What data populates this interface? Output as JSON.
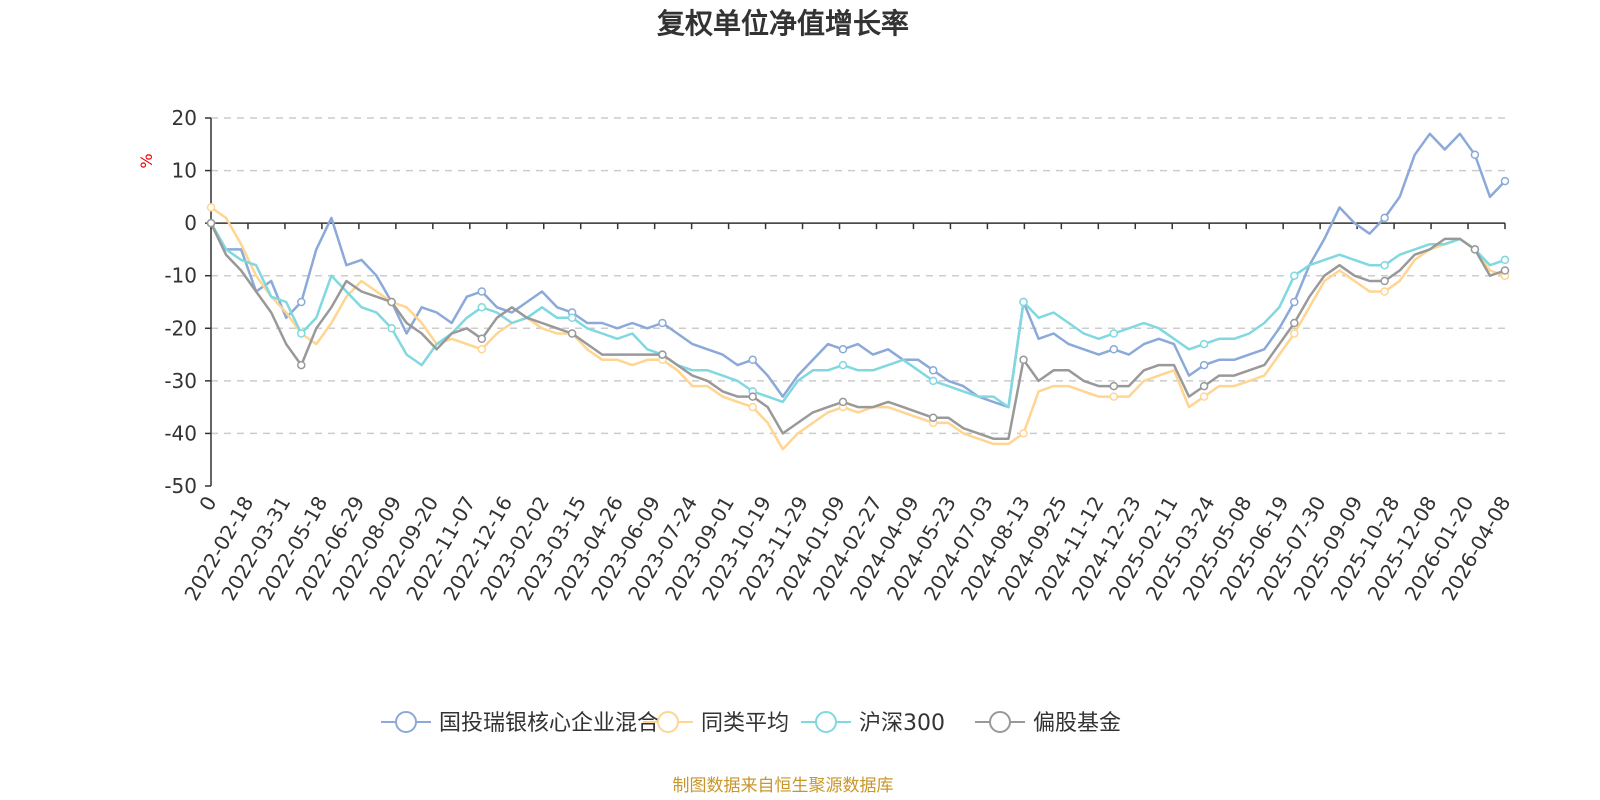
{
  "chart_data": {
    "type": "line",
    "title": "复权单位净值增长率",
    "ylabel": "%",
    "ylim": [
      -50,
      20
    ],
    "yticks": [
      20,
      10,
      0,
      -10,
      -20,
      -30,
      -40,
      -50
    ],
    "x_tick_labels": [
      "0",
      "2022-02-18",
      "2022-03-31",
      "2022-05-18",
      "2022-06-29",
      "2022-08-09",
      "2022-09-20",
      "2022-11-07",
      "2022-12-16",
      "2023-02-02",
      "2023-03-15",
      "2023-04-26",
      "2023-06-09",
      "2023-07-24",
      "2023-09-01",
      "2023-10-19",
      "2023-11-29",
      "2024-01-09",
      "2024-02-27",
      "2024-04-09",
      "2024-05-23",
      "2024-07-03",
      "2024-08-13",
      "2024-09-25",
      "2024-11-12",
      "2024-12-23",
      "2025-02-11",
      "2025-03-24",
      "2025-05-08",
      "2025-06-19",
      "2025-07-30",
      "2025-09-09",
      "2025-10-28",
      "2025-12-08",
      "2026-01-20",
      "2026-04-08"
    ],
    "series": [
      {
        "name": "国投瑞银核心企业混合",
        "color": "#8ba9d9",
        "values": [
          0,
          -5,
          -5,
          -13,
          -11,
          -18,
          -15,
          -5,
          1,
          -8,
          -7,
          -10,
          -15,
          -21,
          -16,
          -17,
          -19,
          -14,
          -13,
          -16,
          -17,
          -15,
          -13,
          -16,
          -17,
          -19,
          -19,
          -20,
          -19,
          -20,
          -19,
          -21,
          -23,
          -24,
          -25,
          -27,
          -26,
          -29,
          -33,
          -29,
          -26,
          -23,
          -24,
          -23,
          -25,
          -24,
          -26,
          -26,
          -28,
          -30,
          -31,
          -33,
          -34,
          -35,
          -15,
          -22,
          -21,
          -23,
          -24,
          -25,
          -24,
          -25,
          -23,
          -22,
          -23,
          -29,
          -27,
          -26,
          -26,
          -25,
          -24,
          -20,
          -15,
          -8,
          -3,
          3,
          0,
          -2,
          1,
          5,
          13,
          17,
          14,
          17,
          13,
          5,
          8
        ]
      },
      {
        "name": "同类平均",
        "color": "#ffd591",
        "values": [
          3,
          1,
          -4,
          -10,
          -14,
          -17,
          -21,
          -23,
          -19,
          -14,
          -11,
          -13,
          -15,
          -16,
          -19,
          -23,
          -22,
          -23,
          -24,
          -21,
          -19,
          -18,
          -20,
          -21,
          -21,
          -24,
          -26,
          -26,
          -27,
          -26,
          -26,
          -28,
          -31,
          -31,
          -33,
          -34,
          -35,
          -38,
          -43,
          -40,
          -38,
          -36,
          -35,
          -36,
          -35,
          -35,
          -36,
          -37,
          -38,
          -38,
          -40,
          -41,
          -42,
          -42,
          -40,
          -32,
          -31,
          -31,
          -32,
          -33,
          -33,
          -33,
          -30,
          -29,
          -28,
          -35,
          -33,
          -31,
          -31,
          -30,
          -29,
          -25,
          -21,
          -16,
          -11,
          -9,
          -11,
          -13,
          -13,
          -11,
          -7,
          -5,
          -4,
          -3,
          -5,
          -9,
          -10
        ]
      },
      {
        "name": "沪深300",
        "color": "#80d8e0",
        "values": [
          0,
          -5,
          -7,
          -8,
          -14,
          -15,
          -21,
          -18,
          -10,
          -13,
          -16,
          -17,
          -20,
          -25,
          -27,
          -23,
          -21,
          -18,
          -16,
          -17,
          -19,
          -18,
          -16,
          -18,
          -18,
          -20,
          -21,
          -22,
          -21,
          -24,
          -25,
          -27,
          -28,
          -28,
          -29,
          -30,
          -32,
          -33,
          -34,
          -30,
          -28,
          -28,
          -27,
          -28,
          -28,
          -27,
          -26,
          -28,
          -30,
          -31,
          -32,
          -33,
          -33,
          -35,
          -15,
          -18,
          -17,
          -19,
          -21,
          -22,
          -21,
          -20,
          -19,
          -20,
          -22,
          -24,
          -23,
          -22,
          -22,
          -21,
          -19,
          -16,
          -10,
          -8,
          -7,
          -6,
          -7,
          -8,
          -8,
          -6,
          -5,
          -4,
          -4,
          -3,
          -5,
          -8,
          -7
        ]
      },
      {
        "name": "偏股基金",
        "color": "#999999",
        "values": [
          0,
          -6,
          -9,
          -13,
          -17,
          -23,
          -27,
          -20,
          -16,
          -11,
          -13,
          -14,
          -15,
          -19,
          -21,
          -24,
          -21,
          -20,
          -22,
          -18,
          -16,
          -18,
          -19,
          -20,
          -21,
          -23,
          -25,
          -25,
          -25,
          -25,
          -25,
          -27,
          -29,
          -30,
          -32,
          -33,
          -33,
          -35,
          -40,
          -38,
          -36,
          -35,
          -34,
          -35,
          -35,
          -34,
          -35,
          -36,
          -37,
          -37,
          -39,
          -40,
          -41,
          -41,
          -26,
          -30,
          -28,
          -28,
          -30,
          -31,
          -31,
          -31,
          -28,
          -27,
          -27,
          -33,
          -31,
          -29,
          -29,
          -28,
          -27,
          -23,
          -19,
          -14,
          -10,
          -8,
          -10,
          -11,
          -11,
          -9,
          -6,
          -5,
          -3,
          -3,
          -5,
          -10,
          -9
        ]
      }
    ]
  },
  "source_note": "制图数据来自恒生聚源数据库"
}
